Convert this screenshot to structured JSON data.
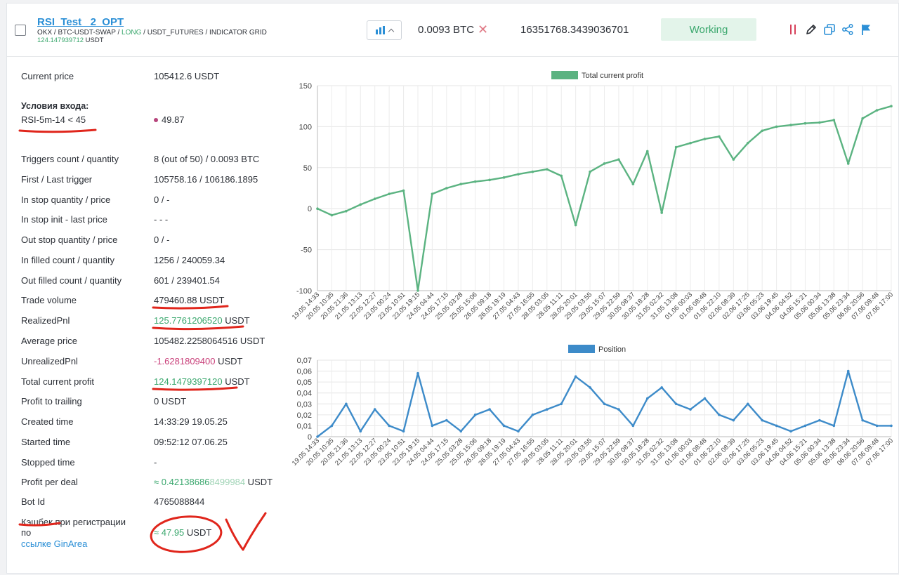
{
  "header": {
    "bot_name": "RSI_Test _2_OPT",
    "path_prefix": "OKX / BTC-USDT-SWAP / ",
    "path_long": "LONG",
    "path_suffix": " / USDT_FUTURES / INDICATOR GRID",
    "sub_value": "124.147939712",
    "sub_unit": " USDT",
    "quantity": "0.0093 BTC",
    "quantity_clear_icon": "✕",
    "big_number": "16351768.3439036701",
    "status": "Working",
    "status_color": "#3aa76d",
    "action_icons": [
      "pause-icon",
      "edit-icon",
      "copy-icon",
      "share-icon",
      "flag-icon"
    ]
  },
  "info": {
    "current_price_label": "Current price",
    "current_price_value": "105412.6 USDT",
    "entry_title": "Условия входа:",
    "entry_rule": "RSI-5m-14 < 45",
    "entry_value": "49.87",
    "rows": [
      {
        "label": "Triggers count / quantity",
        "value": "8 (out of 50) / 0.0093 BTC"
      },
      {
        "label": "First / Last trigger",
        "value": "105758.16 / 106186.1895"
      },
      {
        "label": "In stop quantity / price",
        "value": "0 / -"
      },
      {
        "label": "In stop init - last price",
        "value": "- - -"
      },
      {
        "label": "Out stop quantity / price",
        "value": "0 / -"
      },
      {
        "label": "In filled count / quantity",
        "value": "1256 / 240059.34"
      },
      {
        "label": "Out filled count / quantity",
        "value": "601 / 239401.54"
      }
    ],
    "trade_volume_label": "Trade volume",
    "trade_volume_value": "479460.88 USDT",
    "realized_label": "RealizedPnl",
    "realized_value": "125.7761206520",
    "realized_unit": " USDT",
    "average_label": "Average price",
    "average_value": "105482.2258064516 USDT",
    "unrealized_label": "UnrealizedPnl",
    "unrealized_value": "-1.6281809400",
    "unrealized_unit": " USDT",
    "total_label": "Total current profit",
    "total_value": "124.1479397120",
    "total_unit": " USDT",
    "rows2": [
      {
        "label": "Profit to trailing",
        "value": "0 USDT"
      },
      {
        "label": "Created time",
        "value": "14:33:29 19.05.25"
      },
      {
        "label": "Started time",
        "value": "09:52:12 07.06.25"
      },
      {
        "label": "Stopped time",
        "value": "-"
      }
    ],
    "profit_deal_label": "Profit per deal",
    "profit_deal_prefix": "≈ 0.42138686",
    "profit_deal_faded": "8499984",
    "profit_deal_unit": " USDT",
    "bot_id_label": "Bot Id",
    "bot_id_value": "4765088844",
    "cashback_label_1": "Кэшбек при регистрации",
    "cashback_label_2": "по",
    "cashback_link": "ссылке GinArea",
    "cashback_value": "≈ 47.95",
    "cashback_unit": " USDT"
  },
  "chart_data": [
    {
      "type": "line",
      "legend": "Total current profit",
      "color": "#5bb381",
      "ylim": [
        -100,
        150
      ],
      "yticks": [
        "150",
        "100",
        "50",
        "0",
        "-50",
        "-100"
      ],
      "x": [
        "19.05 14:33",
        "20.05 10:35",
        "20.05 21:36",
        "21.05 13:13",
        "22.05 12:27",
        "23.05 00:24",
        "23.05 10:51",
        "23.05 19:15",
        "24.05 04:44",
        "24.05 17:15",
        "25.05 03:28",
        "25.05 15:06",
        "26.05 09:18",
        "26.05 19:19",
        "27.05 04:43",
        "27.05 16:55",
        "28.05 03:05",
        "28.05 11:11",
        "28.05 20:01",
        "29.05 03:55",
        "29.05 15:07",
        "29.05 22:59",
        "30.05 08:37",
        "30.05 18:28",
        "31.05 02:32",
        "31.05 13:08",
        "01.06 00:03",
        "01.06 08:48",
        "01.06 22:10",
        "02.06 08:39",
        "02.06 17:25",
        "03.06 05:23",
        "03.06 19:45",
        "04.06 04:52",
        "04.06 15:21",
        "05.06 00:34",
        "05.06 13:38",
        "05.06 23:34",
        "06.06 20:56",
        "07.06 09:48",
        "07.06 17:00"
      ],
      "values": [
        0,
        -8,
        -3,
        5,
        12,
        18,
        22,
        -100,
        18,
        25,
        30,
        33,
        35,
        38,
        42,
        45,
        48,
        40,
        -20,
        45,
        55,
        60,
        30,
        70,
        -5,
        75,
        80,
        85,
        88,
        60,
        80,
        95,
        100,
        102,
        104,
        105,
        108,
        55,
        110,
        120,
        125
      ]
    },
    {
      "type": "area",
      "legend": "Position",
      "color": "#3d8bc9",
      "ylim": [
        0,
        0.07
      ],
      "yticks": [
        "0,07",
        "0,06",
        "0,05",
        "0,04",
        "0,03",
        "0,02",
        "0,01",
        "0"
      ],
      "x": [
        "19.05 14:33",
        "20.05 10:35",
        "20.05 21:36",
        "21.05 13:13",
        "22.05 12:27",
        "23.05 00:24",
        "23.05 10:51",
        "23.05 19:15",
        "24.05 04:44",
        "24.05 17:15",
        "25.05 03:28",
        "25.05 15:06",
        "26.05 09:18",
        "26.05 19:19",
        "27.05 04:43",
        "27.05 16:55",
        "28.05 03:05",
        "28.05 11:11",
        "28.05 20:01",
        "29.05 03:55",
        "29.05 15:07",
        "29.05 22:59",
        "30.05 08:37",
        "30.05 18:28",
        "31.05 02:32",
        "31.05 13:08",
        "01.06 00:03",
        "01.06 08:48",
        "01.06 22:10",
        "02.06 08:39",
        "02.06 17:25",
        "03.06 05:23",
        "03.06 19:45",
        "04.06 04:52",
        "04.06 15:21",
        "05.06 00:34",
        "05.06 13:38",
        "05.06 23:34",
        "06.06 20:56",
        "07.06 09:48",
        "07.06 17:00"
      ],
      "values": [
        0,
        0.01,
        0.03,
        0.005,
        0.025,
        0.01,
        0.005,
        0.058,
        0.01,
        0.015,
        0.005,
        0.02,
        0.025,
        0.01,
        0.005,
        0.02,
        0.025,
        0.03,
        0.055,
        0.045,
        0.03,
        0.025,
        0.01,
        0.035,
        0.045,
        0.03,
        0.025,
        0.035,
        0.02,
        0.015,
        0.03,
        0.015,
        0.01,
        0.005,
        0.01,
        0.015,
        0.01,
        0.06,
        0.015,
        0.01,
        0.01
      ]
    }
  ]
}
